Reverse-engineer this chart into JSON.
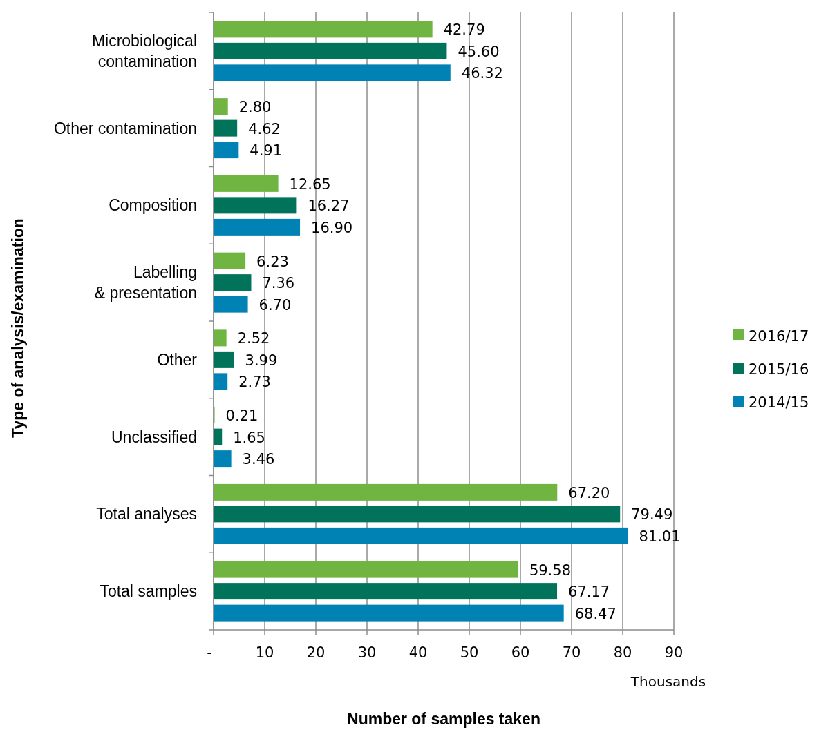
{
  "chart_data": {
    "type": "bar",
    "orientation": "horizontal",
    "xlabel": "Number of samples taken",
    "ylabel": "Type of analysis/examination",
    "categories": [
      "Microbiological\ncontamination",
      "Other contamination",
      "Composition",
      "Labelling\n& presentation",
      "Other",
      "Unclassified",
      "Total analyses",
      "Total samples"
    ],
    "series": [
      {
        "name": "2016/17",
        "color": "#70b541",
        "values": [
          42.79,
          2.8,
          12.65,
          6.23,
          2.52,
          0.21,
          67.2,
          59.58
        ]
      },
      {
        "name": "2015/16",
        "color": "#00735a",
        "values": [
          45.6,
          4.62,
          16.27,
          7.36,
          3.99,
          1.65,
          79.49,
          67.17
        ]
      },
      {
        "name": "2014/15",
        "color": "#0082b4",
        "values": [
          46.32,
          4.91,
          16.9,
          6.7,
          2.73,
          3.46,
          81.01,
          68.47
        ]
      }
    ],
    "value_labels": [
      [
        "42.79",
        "2.80",
        "12.65",
        "6.23",
        "2.52",
        "0.21",
        "67.20",
        "59.58"
      ],
      [
        "45.60",
        "4.62",
        "16.27",
        "7.36",
        "3.99",
        "1.65",
        "79.49",
        "67.17"
      ],
      [
        "46.32",
        "4.91",
        "16.90",
        "6.70",
        "2.73",
        "3.46",
        "81.01",
        "68.47"
      ]
    ],
    "xlim": [
      0,
      90
    ],
    "xticks": [
      {
        "value": 0,
        "label": "-"
      },
      10,
      20,
      30,
      40,
      50,
      60,
      70,
      80,
      90
    ],
    "grid": "x",
    "legend": "right",
    "annotations": [
      "Thousands"
    ]
  }
}
